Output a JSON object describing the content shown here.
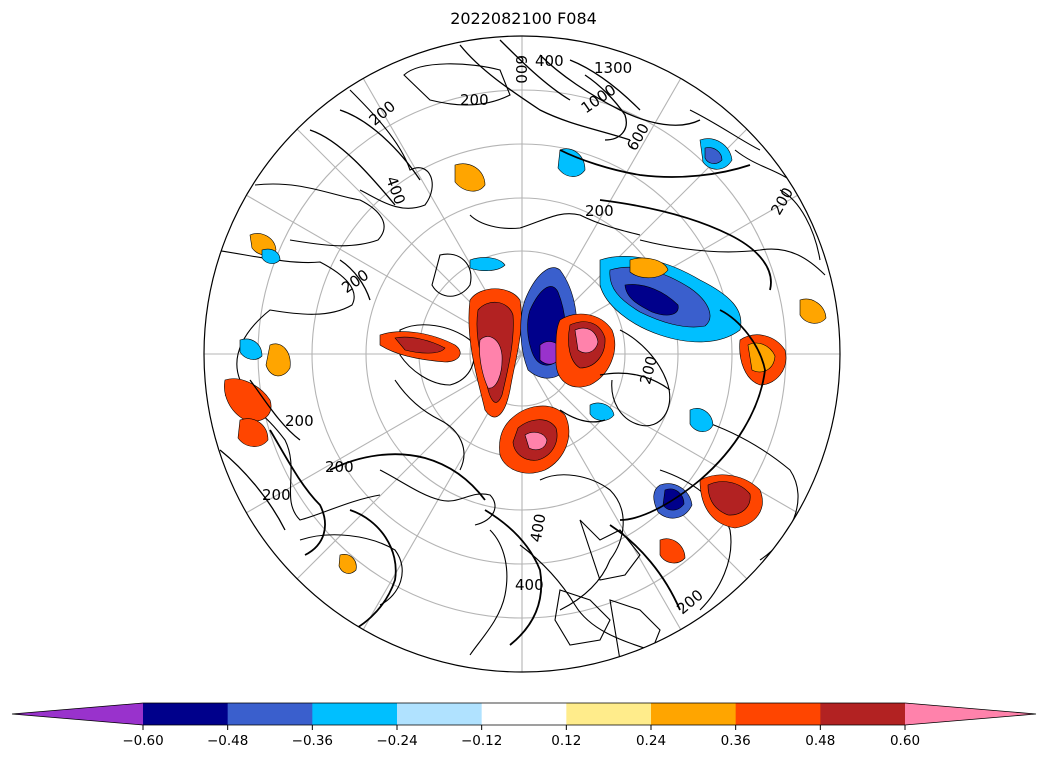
{
  "title": "2022082100 F084",
  "colorbar": {
    "extend": "both",
    "levels": [
      -0.6,
      -0.48,
      -0.36,
      -0.24,
      -0.12,
      0.12,
      0.24,
      0.36,
      0.48,
      0.6
    ],
    "tick_labels": [
      "−0.60",
      "−0.48",
      "−0.36",
      "−0.24",
      "−0.12",
      "0.12",
      "0.24",
      "0.36",
      "0.48",
      "0.60"
    ],
    "colors": [
      "#9932cc",
      "#00008b",
      "#3a5fcd",
      "#00bfff",
      "#b0e2ff",
      "#ffffff",
      "#ffec8b",
      "#ffa500",
      "#ff4500",
      "#b22222",
      "#ff82ab"
    ]
  },
  "map": {
    "projection": "north-polar-stereographic",
    "contour_labels": [
      "200",
      "400",
      "600",
      "1000",
      "1300",
      "200",
      "400",
      "200",
      "200",
      "200",
      "200",
      "200",
      "200",
      "600",
      "200",
      "400",
      "200",
      "400"
    ]
  }
}
